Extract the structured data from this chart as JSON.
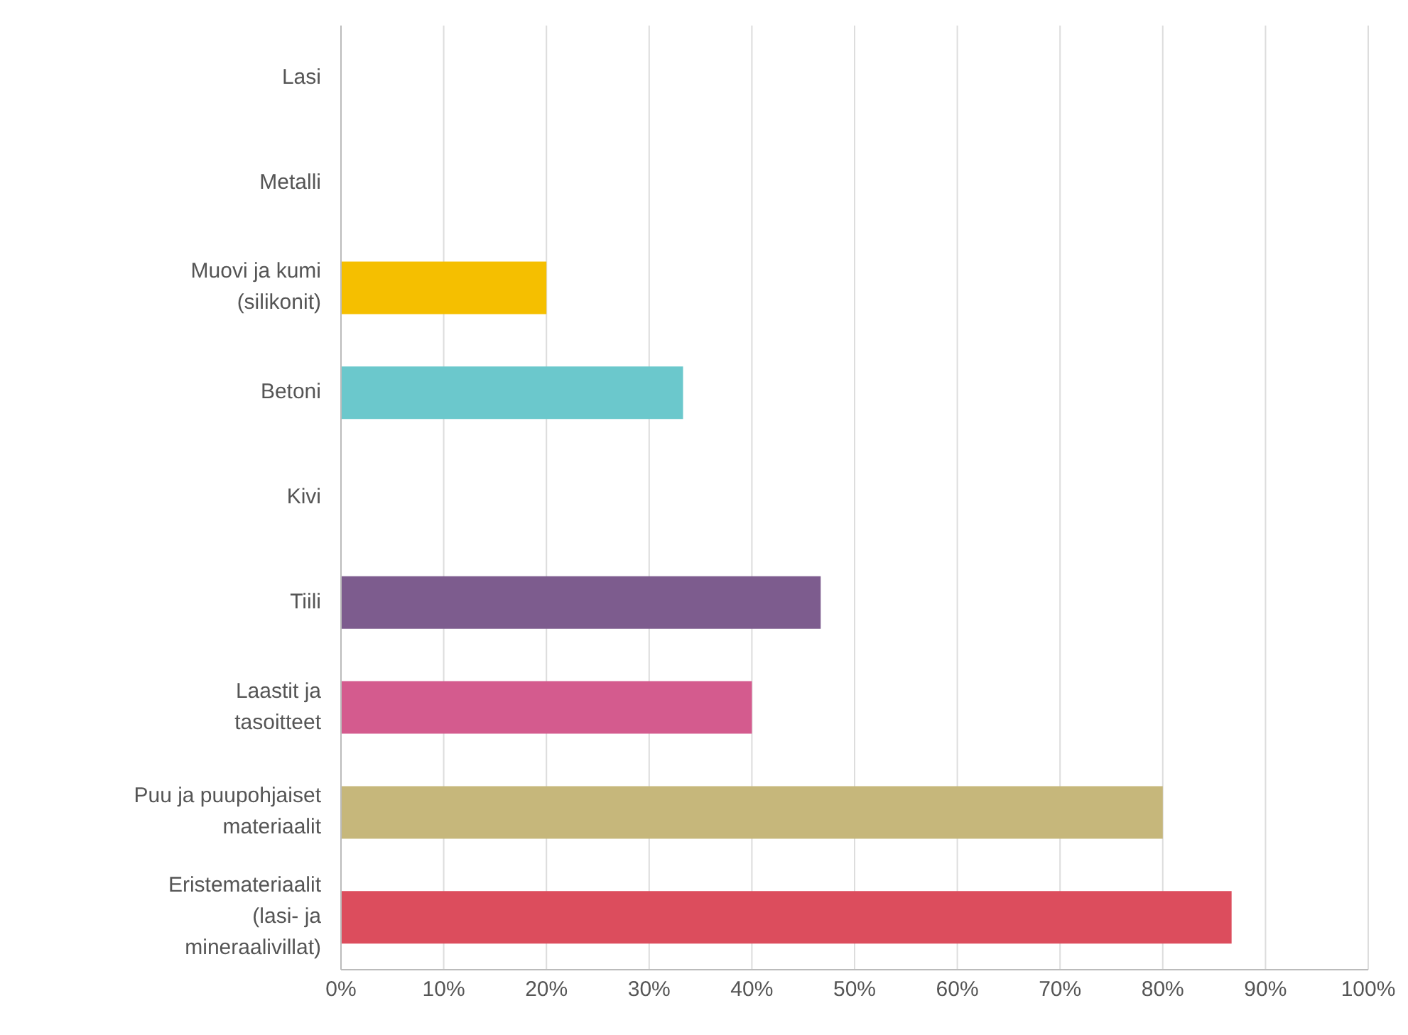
{
  "chart_data": {
    "type": "bar",
    "orientation": "horizontal",
    "categories": [
      "Lasi",
      "Metalli",
      "Muovi ja kumi (silikonit)",
      "Betoni",
      "Kivi",
      "Tiili",
      "Laastit ja tasoitteet",
      "Puu ja puupohjaiset materiaalit",
      "Eristemateriaalit (lasi- ja mineraalivillat)"
    ],
    "values": [
      0,
      0,
      20,
      33.3,
      0,
      46.7,
      40,
      80,
      86.7
    ],
    "colors": [
      "#4fa3d9",
      "#8bc34a",
      "#f5bf00",
      "#6bc8cc",
      "#a0a0a0",
      "#7d5c8e",
      "#d45b8e",
      "#c6b77b",
      "#dc4d5d"
    ],
    "xlim": [
      0,
      100
    ],
    "xticks": [
      {
        "value": 0,
        "label": "0%"
      },
      {
        "value": 10,
        "label": "10%"
      },
      {
        "value": 20,
        "label": "20%"
      },
      {
        "value": 30,
        "label": "30%"
      },
      {
        "value": 40,
        "label": "40%"
      },
      {
        "value": 50,
        "label": "50%"
      },
      {
        "value": 60,
        "label": "60%"
      },
      {
        "value": 70,
        "label": "70%"
      },
      {
        "value": 80,
        "label": "80%"
      },
      {
        "value": 90,
        "label": "90%"
      },
      {
        "value": 100,
        "label": "100%"
      }
    ],
    "grid": "x"
  }
}
